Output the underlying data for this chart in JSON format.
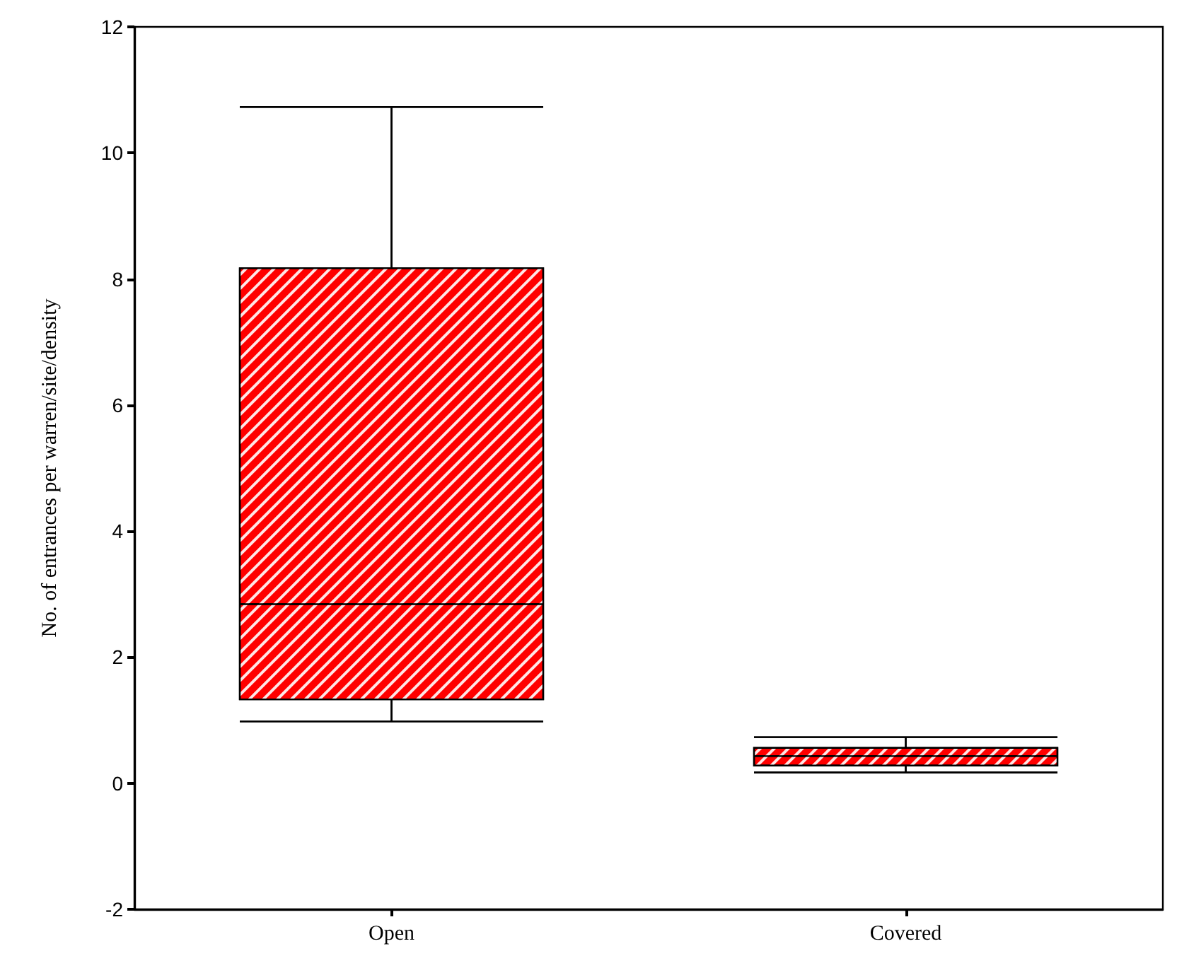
{
  "chart_data": {
    "type": "box",
    "ylabel": "No. of entrances per warren/site/density",
    "categories": [
      "Open",
      "Covered"
    ],
    "color": "#ff0000",
    "ylim": [
      -2,
      12
    ],
    "yticks": [
      -2,
      0,
      2,
      4,
      6,
      8,
      10,
      12
    ],
    "grid": false,
    "boxes": [
      {
        "low": 0.98,
        "q1": 1.33,
        "median": 2.84,
        "q3": 8.17,
        "high": 10.73
      },
      {
        "low": 0.17,
        "q1": 0.28,
        "median": 0.43,
        "q3": 0.56,
        "high": 0.73
      }
    ]
  }
}
